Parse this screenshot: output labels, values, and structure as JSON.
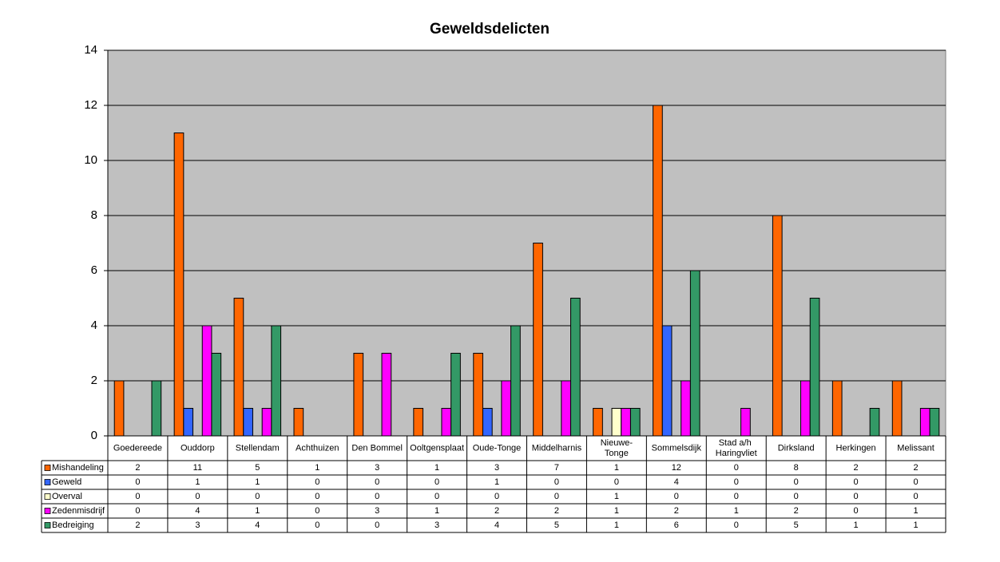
{
  "chart_data": {
    "type": "bar",
    "title": "Geweldsdelicten",
    "categories": [
      "Goedereede",
      "Ouddorp",
      "Stellendam",
      "Achthuizen",
      "Den Bommel",
      "Ooltgensplaat",
      "Oude-Tonge",
      "Middelharnis",
      "Nieuwe-Tonge",
      "Sommelsdijk",
      "Stad a/h Haringvliet",
      "Dirksland",
      "Herkingen",
      "Melissant"
    ],
    "series": [
      {
        "name": "Mishandeling",
        "color": "#ff6600",
        "values": [
          2,
          11,
          5,
          1,
          3,
          1,
          3,
          7,
          1,
          12,
          0,
          8,
          2,
          2
        ]
      },
      {
        "name": "Geweld",
        "color": "#3366ff",
        "values": [
          0,
          1,
          1,
          0,
          0,
          0,
          1,
          0,
          0,
          4,
          0,
          0,
          0,
          0
        ]
      },
      {
        "name": "Overval",
        "color": "#ffffcc",
        "values": [
          0,
          0,
          0,
          0,
          0,
          0,
          0,
          0,
          1,
          0,
          0,
          0,
          0,
          0
        ]
      },
      {
        "name": "Zedenmisdrijf",
        "color": "#ff00ff",
        "values": [
          0,
          4,
          1,
          0,
          3,
          1,
          2,
          2,
          1,
          2,
          1,
          2,
          0,
          1
        ]
      },
      {
        "name": "Bedreiging",
        "color": "#339966",
        "values": [
          2,
          3,
          4,
          0,
          0,
          3,
          4,
          5,
          1,
          6,
          0,
          5,
          1,
          1
        ]
      }
    ],
    "ylim": [
      0,
      14
    ],
    "yticks": [
      0,
      2,
      4,
      6,
      8,
      10,
      12,
      14
    ],
    "grid": true,
    "plot_background": "#c0c0c0"
  }
}
